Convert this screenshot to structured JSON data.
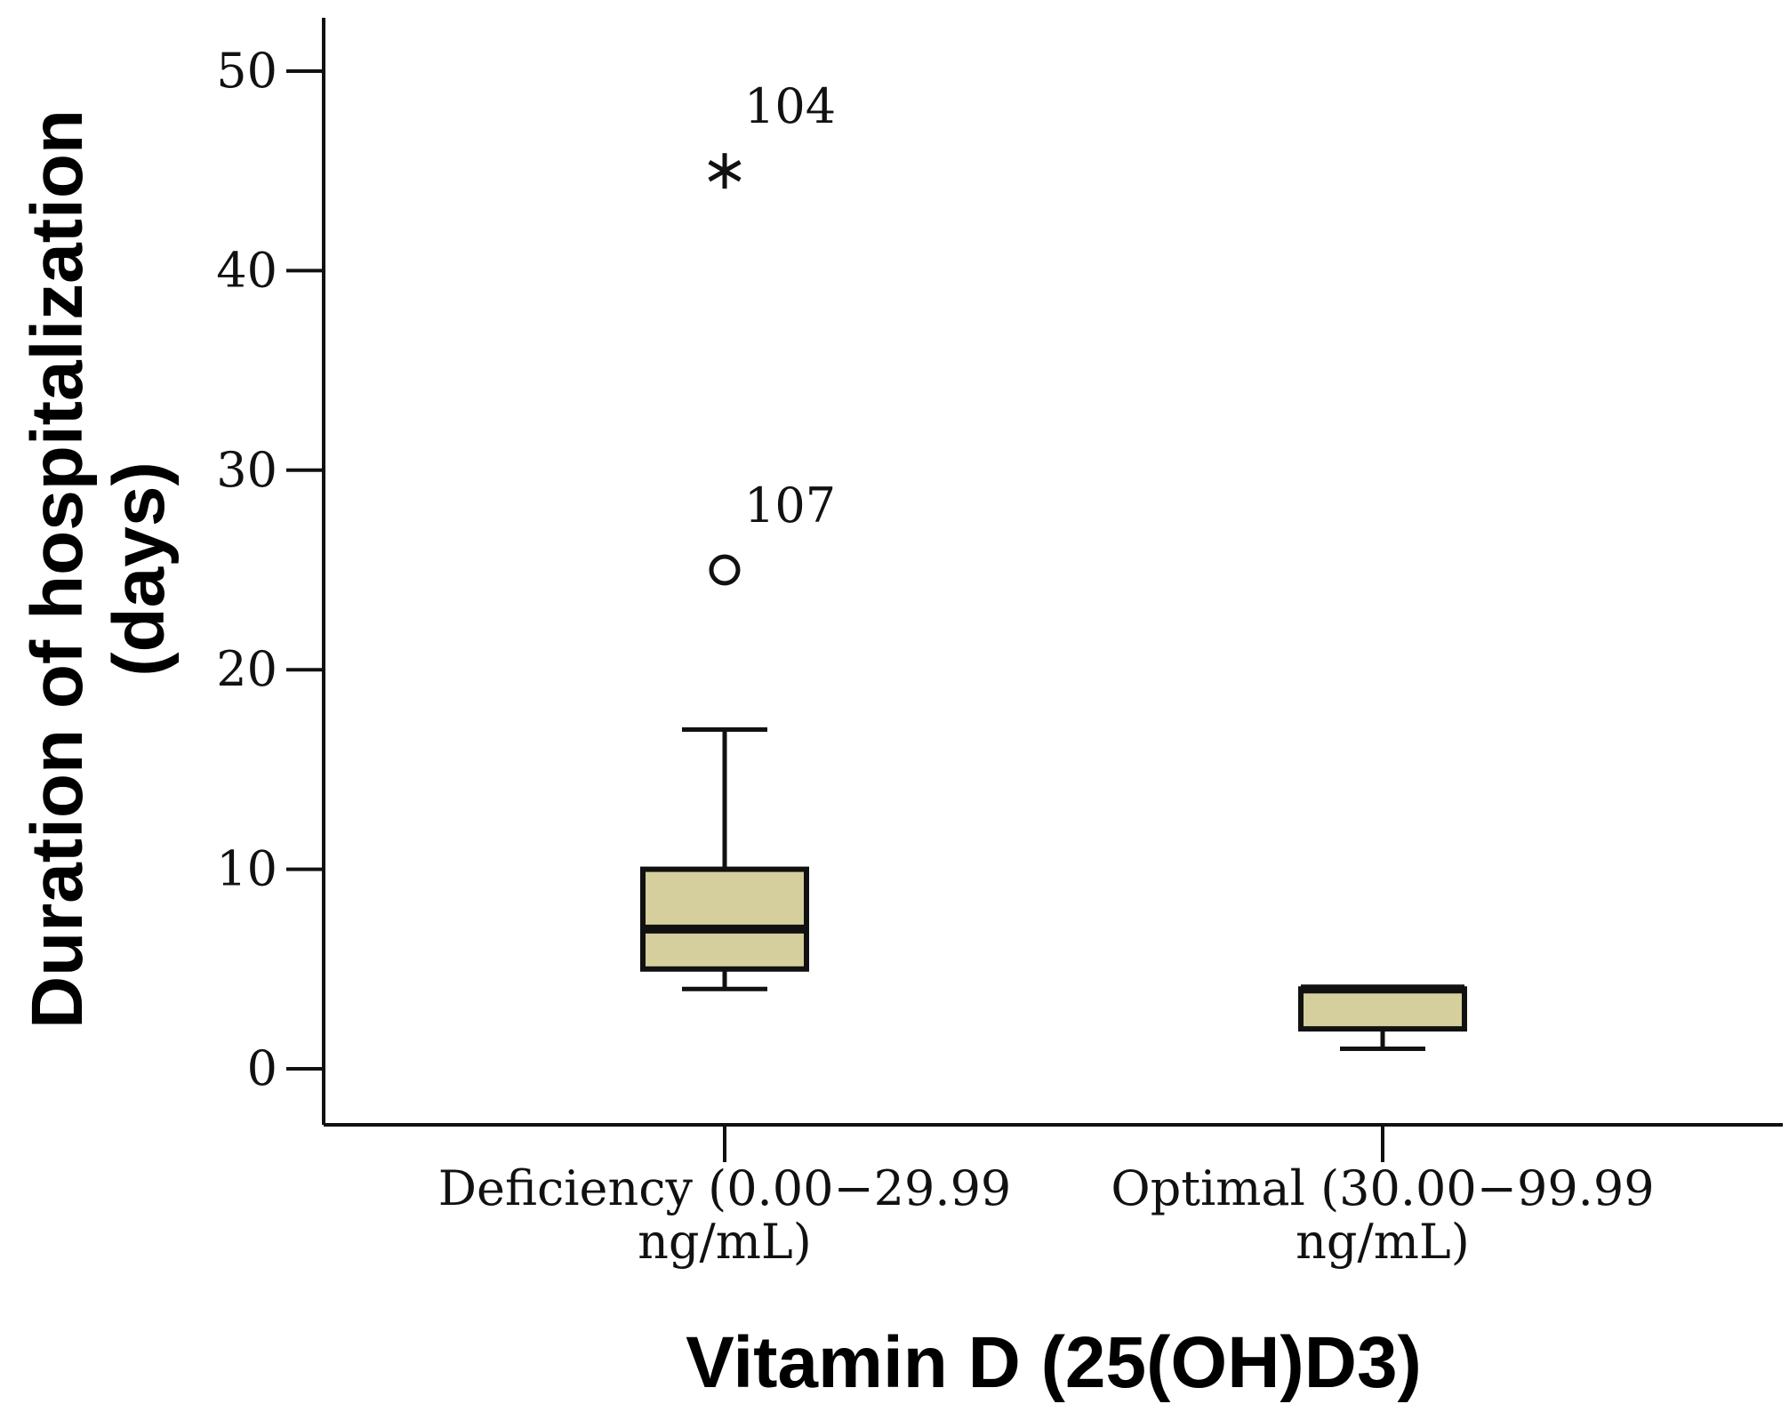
{
  "chart_data": {
    "type": "boxplot",
    "title": "",
    "xlabel": "Vitamin D (25(OH)D3)",
    "ylabel_lines": [
      "Duration of hospitalization",
      "(days)"
    ],
    "ylim": [
      -3,
      53
    ],
    "yticks": [
      0,
      10,
      20,
      30,
      40,
      50
    ],
    "box_color": "#d4cf9c",
    "categories": [
      {
        "label_lines": [
          "Deficiency (0.00−29.99",
          "ng/mL)"
        ],
        "whisker_low": 4,
        "q1": 5,
        "median": 7,
        "q3": 10,
        "whisker_high": 17,
        "outliers": [
          {
            "value": 25,
            "marker": "circle",
            "label": "107"
          },
          {
            "value": 45,
            "marker": "star",
            "label": "104"
          }
        ]
      },
      {
        "label_lines": [
          "Optimal (30.00−99.99",
          "ng/mL)"
        ],
        "whisker_low": 1,
        "q1": 2,
        "median": 4,
        "q3": 4,
        "whisker_high": 4,
        "outliers": []
      }
    ]
  }
}
